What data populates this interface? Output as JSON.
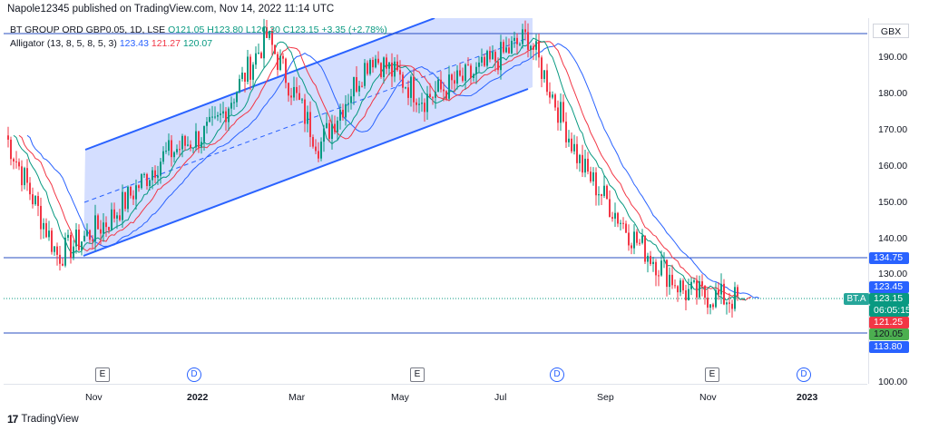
{
  "header": {
    "published_line": "Napole12345 published on TradingView.com, Nov 14, 2022 11:14 UTC"
  },
  "legend": {
    "symbol_line": "BT GROUP ORD GBP0.05, 1D, LSE",
    "ohlc_line": "O121.05 H123.80 L120.30 C123.15 +3.35 (+2.78%)",
    "indicator_name": "Alligator (13, 8, 5, 8, 5, 3)",
    "indicator_values": [
      "123.43",
      "121.27",
      "120.07"
    ]
  },
  "price_scale": {
    "currency": "GBX",
    "ticks": [
      "190.00",
      "180.00",
      "170.00",
      "160.00",
      "150.00",
      "140.00",
      "130.00",
      "100.00"
    ],
    "badges": {
      "level_high": "134.75",
      "jaw": "123.45",
      "last_price": "123.15",
      "countdown": "06:05:15",
      "teeth": "121.25",
      "lips": "120.05",
      "level_low": "113.80"
    },
    "symbol_tag": "BT.A"
  },
  "time_axis": {
    "labels": [
      "Nov",
      "2022",
      "Mar",
      "May",
      "Jul",
      "Sep",
      "Nov",
      "2023"
    ],
    "bold_labels": [
      "2022",
      "2023"
    ],
    "event_markers": [
      "E",
      "D",
      "E",
      "D",
      "E",
      "D"
    ]
  },
  "colors": {
    "up": "#089981",
    "down": "#f23645",
    "jaw": "#2962ff",
    "teeth": "#f23645",
    "lips": "#089981",
    "channel_fill": "#c9d6ff",
    "horizontal_line": "#2a4fc0"
  },
  "footer": {
    "brand": "TradingView"
  },
  "chart_data": {
    "type": "candlestick",
    "symbol": "BT GROUP ORD GBP0.05",
    "interval": "1D",
    "exchange": "LSE",
    "y_range": [
      100,
      200
    ],
    "x_range": [
      "Oct 2021",
      "Dec 2022"
    ],
    "horizontal_levels": [
      134.75,
      113.8,
      196.5
    ],
    "last": {
      "open": 121.05,
      "high": 123.8,
      "low": 120.3,
      "close": 123.15,
      "change": 3.35,
      "change_pct": 2.78
    },
    "price_path_approx": [
      {
        "date": "Oct 2021",
        "price": 168
      },
      {
        "date": "Late Oct 2021",
        "price": 135
      },
      {
        "date": "Nov 2021",
        "price": 145
      },
      {
        "date": "Dec 2021",
        "price": 162
      },
      {
        "date": "Jan 2022",
        "price": 170
      },
      {
        "date": "Feb 2022",
        "price": 195
      },
      {
        "date": "Mar 2022",
        "price": 165
      },
      {
        "date": "Apr 2022",
        "price": 190
      },
      {
        "date": "May 2022",
        "price": 178
      },
      {
        "date": "Jun 2022",
        "price": 185
      },
      {
        "date": "Jul 2022",
        "price": 195
      },
      {
        "date": "Aug 2022",
        "price": 160
      },
      {
        "date": "Sep 2022",
        "price": 140
      },
      {
        "date": "Oct 2022",
        "price": 125
      },
      {
        "date": "Nov 2022",
        "price": 123
      }
    ]
  }
}
